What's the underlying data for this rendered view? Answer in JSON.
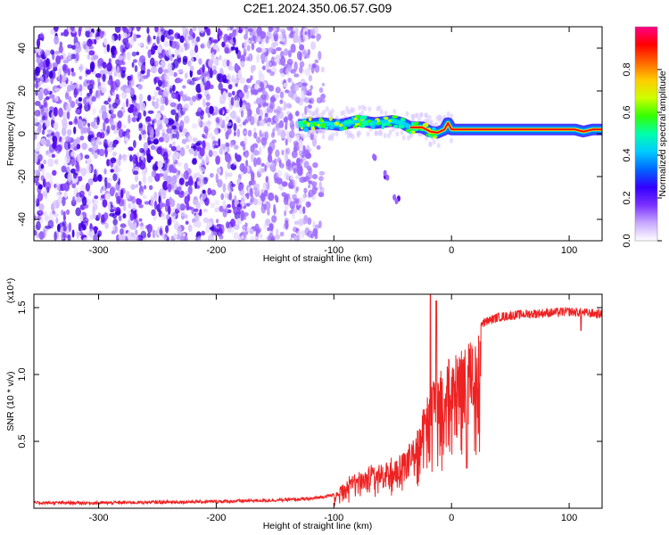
{
  "title": "C2E1.2024.350.06.57.G09",
  "chart_data": [
    {
      "type": "heatmap",
      "xlabel": "Height of straight line (km)",
      "ylabel": "Frequency (Hz)",
      "xlim": [
        -355,
        128
      ],
      "ylim": [
        -50,
        50
      ],
      "xticks": [
        {
          "v": -300,
          "label": "-300"
        },
        {
          "v": -200,
          "label": "-200"
        },
        {
          "v": -100,
          "label": "-100"
        },
        {
          "v": 0,
          "label": "0"
        },
        {
          "v": 100,
          "label": "100"
        }
      ],
      "yticks": [
        {
          "v": -40,
          "label": "-40"
        },
        {
          "v": -20,
          "label": "-20"
        },
        {
          "v": 0,
          "label": "0"
        },
        {
          "v": 20,
          "label": "20"
        },
        {
          "v": 40,
          "label": "40"
        }
      ],
      "colorbar": {
        "label": "Normalized spectral amplitude",
        "range": [
          0,
          1
        ],
        "ticks": [
          {
            "v": 0.0,
            "label": "0.0"
          },
          {
            "v": 0.2,
            "label": "0.2"
          },
          {
            "v": 0.4,
            "label": "0.4"
          },
          {
            "v": 0.6,
            "label": "0.6"
          },
          {
            "v": 0.8,
            "label": "0.8"
          }
        ],
        "colors": [
          "#ffffff",
          "#c8a8ff",
          "#7a30ff",
          "#3300ff",
          "#0066ff",
          "#00ccff",
          "#00ffaa",
          "#33ff00",
          "#ccff00",
          "#ffcc00",
          "#ff6600",
          "#ff0000",
          "#ff0088"
        ]
      },
      "noise_region_x": [
        -355,
        -120
      ],
      "signal_track": [
        [
          -130,
          4
        ],
        [
          -110,
          5
        ],
        [
          -95,
          4
        ],
        [
          -80,
          6
        ],
        [
          -65,
          5
        ],
        [
          -50,
          6
        ],
        [
          -42,
          5
        ],
        [
          -35,
          3
        ],
        [
          -25,
          3
        ],
        [
          -18,
          1
        ],
        [
          -12,
          0.5
        ],
        [
          -6,
          2
        ],
        [
          -3,
          5
        ],
        [
          0,
          2
        ],
        [
          10,
          2
        ],
        [
          30,
          2
        ],
        [
          60,
          2
        ],
        [
          90,
          2
        ],
        [
          105,
          2
        ],
        [
          112,
          1
        ],
        [
          120,
          2
        ],
        [
          128,
          2
        ]
      ],
      "secondary_track": [
        [
          -65,
          -12
        ],
        [
          -55,
          -20
        ],
        [
          -47,
          -30
        ]
      ]
    },
    {
      "type": "line",
      "xlabel": "Height of straight line (km)",
      "ylabel": "SNR (10 * v/v)",
      "scale_label": "(x10⁴)",
      "xlim": [
        -355,
        128
      ],
      "ylim": [
        0,
        1.6
      ],
      "xticks": [
        {
          "v": -300,
          "label": "-300"
        },
        {
          "v": -200,
          "label": "-200"
        },
        {
          "v": -100,
          "label": "-100"
        },
        {
          "v": 0,
          "label": "0"
        },
        {
          "v": 100,
          "label": "100"
        }
      ],
      "yticks": [
        {
          "v": 0.5,
          "label": "0.5"
        },
        {
          "v": 1.0,
          "label": "1.0"
        },
        {
          "v": 1.5,
          "label": "1.5"
        }
      ],
      "series": [
        {
          "color": "#ee2222",
          "envelope": [
            [
              -355,
              0.04
            ],
            [
              -300,
              0.04
            ],
            [
              -250,
              0.045
            ],
            [
              -200,
              0.05
            ],
            [
              -150,
              0.06
            ],
            [
              -120,
              0.07
            ],
            [
              -100,
              0.1
            ],
            [
              -90,
              0.2
            ],
            [
              -80,
              0.27
            ],
            [
              -70,
              0.3
            ],
            [
              -60,
              0.33
            ],
            [
              -50,
              0.38
            ],
            [
              -40,
              0.42
            ],
            [
              -30,
              0.55
            ],
            [
              -22,
              0.8
            ],
            [
              -15,
              1.0
            ],
            [
              -8,
              1.1
            ],
            [
              0,
              1.15
            ],
            [
              8,
              1.2
            ],
            [
              15,
              1.3
            ],
            [
              25,
              1.38
            ],
            [
              40,
              1.43
            ],
            [
              60,
              1.45
            ],
            [
              80,
              1.46
            ],
            [
              100,
              1.47
            ],
            [
              115,
              1.46
            ],
            [
              128,
              1.45
            ]
          ],
          "spikes": [
            [
              -18,
              1.6
            ],
            [
              -13,
              1.55
            ],
            [
              13,
              0.3
            ],
            [
              110,
              1.33
            ]
          ]
        }
      ]
    }
  ]
}
